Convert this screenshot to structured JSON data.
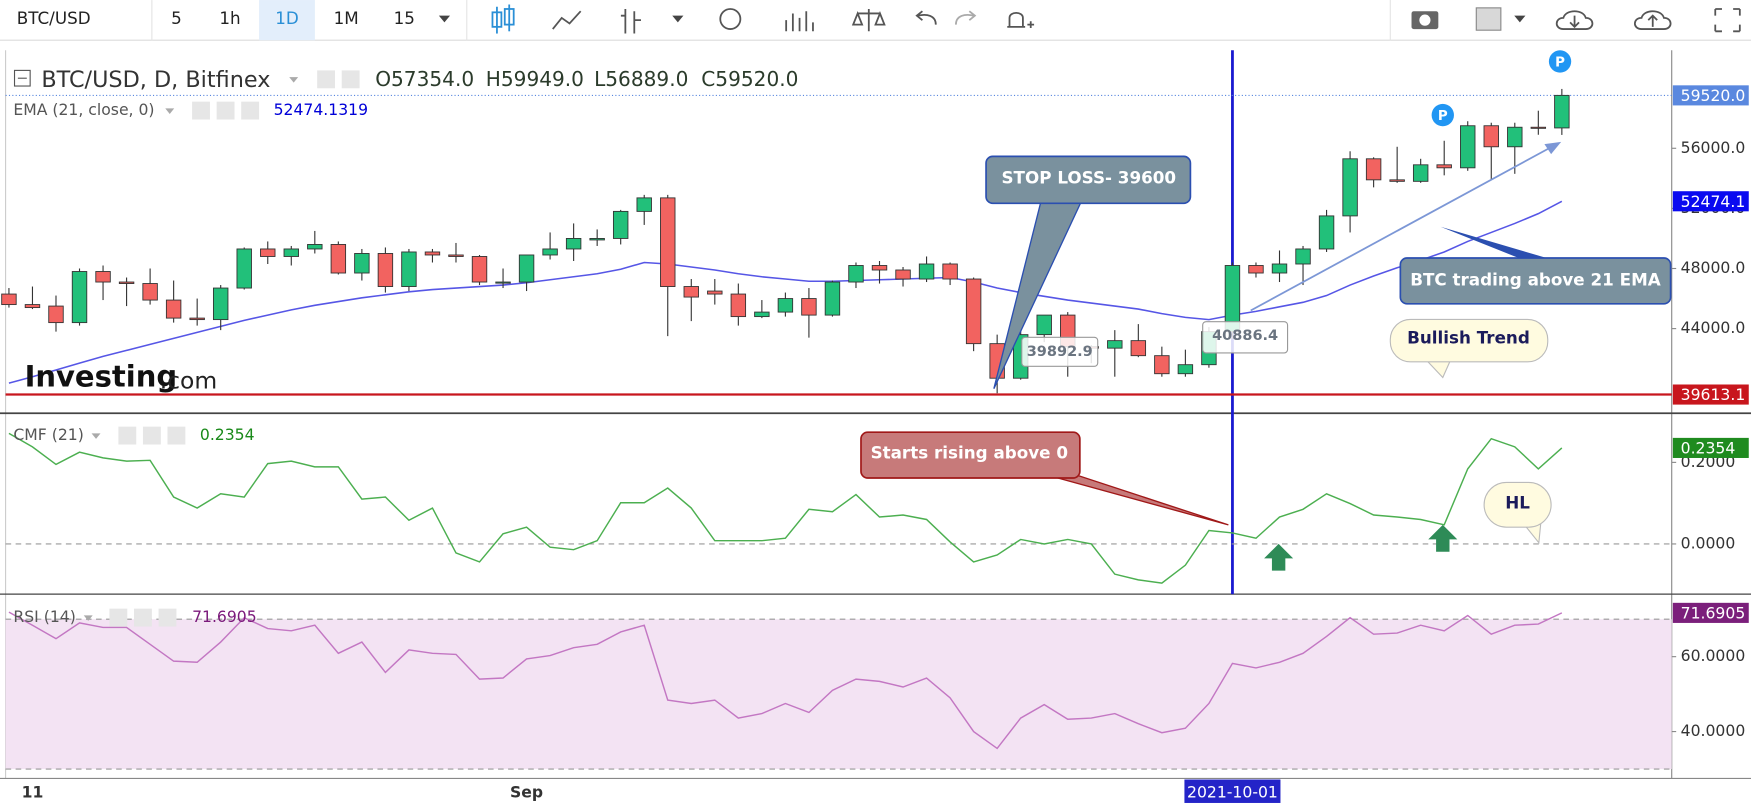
{
  "toolbar": {
    "symbol": "BTC/USD",
    "intervals": [
      "5",
      "1h",
      "1D",
      "1M",
      "15"
    ],
    "active": 2
  },
  "chart_data": [
    {
      "type": "candlestick",
      "title": "BTC/USD, D, Bitfinex",
      "ohlc_legend": [
        {
          "value": 57354,
          "label": "O57354.0"
        },
        {
          "value": 59949,
          "label": "H59949.0"
        },
        {
          "value": 56889,
          "label": "L56889.0"
        },
        {
          "value": 59520,
          "label": "C59520.0"
        }
      ],
      "categories": [
        null,
        "11",
        null,
        null,
        null,
        null,
        null,
        null,
        null,
        null,
        null,
        null,
        null,
        null,
        null,
        null,
        null,
        null,
        null,
        null,
        null,
        null,
        "Sep",
        null,
        null,
        null,
        null,
        null,
        null,
        null,
        null,
        null,
        null,
        null,
        null,
        null,
        null,
        null,
        null,
        null,
        null,
        null,
        null,
        null,
        null,
        null,
        null,
        null,
        null,
        null,
        null,
        null,
        "2021-10-01",
        null,
        null,
        null,
        null,
        null,
        null,
        null,
        null,
        null,
        null,
        null,
        null,
        null,
        null
      ],
      "crosshair_category": "2021-10-01",
      "open": [
        46300,
        45600,
        45500,
        44400,
        47800,
        47100,
        47000,
        45900,
        44700,
        44600,
        46700,
        49300,
        48800,
        49300,
        49600,
        47700,
        49000,
        46800,
        49100,
        48900,
        48800,
        47100,
        47100,
        48900,
        49300,
        49900,
        50000,
        51800,
        52700,
        46800,
        46500,
        46300,
        44800,
        45100,
        46000,
        44900,
        47100,
        48200,
        47900,
        47300,
        48300,
        47300,
        43000,
        40700,
        43600,
        44900,
        42800,
        42700,
        43200,
        42200,
        41000,
        41600,
        43800,
        48200,
        47700,
        48300,
        49300,
        51500,
        55300,
        53900,
        53800,
        54900,
        54700,
        57500,
        56100,
        57400,
        57354
      ],
      "high": [
        46700,
        46800,
        46200,
        48000,
        48200,
        47400,
        48000,
        47200,
        46000,
        46900,
        49400,
        49800,
        49500,
        50500,
        49800,
        49300,
        49400,
        49300,
        49300,
        49700,
        48900,
        48000,
        48900,
        50400,
        51000,
        50600,
        51900,
        52900,
        52900,
        47300,
        47300,
        47000,
        45900,
        46400,
        46700,
        47200,
        48400,
        48500,
        48100,
        48800,
        48400,
        47400,
        43600,
        44000,
        44900,
        45100,
        42900,
        43900,
        44300,
        42800,
        42600,
        44100,
        48400,
        48400,
        49200,
        49500,
        51900,
        55800,
        55400,
        56100,
        55300,
        56500,
        57800,
        57700,
        57700,
        58500,
        59949
      ],
      "low": [
        45400,
        45300,
        43800,
        44200,
        45900,
        45500,
        45600,
        44400,
        44200,
        43900,
        46600,
        48300,
        48200,
        49000,
        47600,
        47200,
        46400,
        46500,
        48400,
        48400,
        46900,
        46700,
        46500,
        48600,
        48500,
        49500,
        49600,
        50900,
        43500,
        44500,
        45600,
        44200,
        44700,
        44800,
        43400,
        44800,
        46700,
        47000,
        46800,
        47100,
        46900,
        42500,
        39700,
        40600,
        43100,
        40800,
        41700,
        40800,
        42100,
        40800,
        40800,
        41400,
        43300,
        47400,
        47100,
        46900,
        49100,
        50400,
        53400,
        53700,
        53700,
        54200,
        54500,
        53900,
        54300,
        56900,
        56889
      ],
      "close": [
        45600,
        45400,
        44400,
        47800,
        47100,
        47000,
        45900,
        44700,
        44600,
        46700,
        49300,
        48800,
        49300,
        49600,
        47700,
        49000,
        46800,
        49100,
        48900,
        48800,
        47100,
        47100,
        48900,
        49300,
        50000,
        50000,
        51800,
        52700,
        46800,
        46100,
        46300,
        44800,
        45100,
        46000,
        44900,
        47100,
        48200,
        47900,
        47300,
        48300,
        47300,
        43000,
        40700,
        43600,
        44900,
        42800,
        42700,
        43200,
        42200,
        41000,
        41600,
        43800,
        48200,
        47700,
        48300,
        49300,
        51500,
        55300,
        53900,
        53800,
        54900,
        54700,
        57500,
        56100,
        57400,
        57354,
        59520
      ],
      "up_color": "#22c07a",
      "down_color": "#f26360",
      "ylim": [
        38370,
        62520
      ],
      "yticks": [
        {
          "value": 44000,
          "label": "44000.0"
        },
        {
          "value": 48000,
          "label": "48000.0"
        },
        {
          "value": 52000,
          "label": "52000.0"
        },
        {
          "value": 56000,
          "label": "56000.0"
        }
      ],
      "grid": false,
      "series": [
        {
          "name": "EMA (21, close, 0)",
          "color": "#5656e6",
          "values": [
            40370,
            40800,
            41250,
            41700,
            42150,
            42550,
            42950,
            43350,
            43750,
            44150,
            44550,
            44900,
            45250,
            45550,
            45800,
            46050,
            46250,
            46450,
            46600,
            46700,
            46800,
            46900,
            47050,
            47250,
            47450,
            47650,
            47950,
            48400,
            48300,
            48100,
            47900,
            47650,
            47450,
            47300,
            47150,
            47150,
            47200,
            47250,
            47300,
            47350,
            47400,
            47100,
            46700,
            46400,
            46150,
            45900,
            45700,
            45500,
            45300,
            45000,
            44750,
            44600,
            44900,
            45150,
            45450,
            45750,
            46200,
            46900,
            47500,
            48050,
            48550,
            49100,
            49800,
            50400,
            51000,
            51650,
            52474.1319
          ]
        }
      ],
      "price_flags": [
        {
          "value": 59520,
          "label": "59520.0",
          "color": "#5a88df",
          "line": "dotted"
        },
        {
          "value": 52474.1,
          "color": "#0a0af0"
        },
        {
          "value": 39613.1,
          "color": "#c8161d",
          "line": "solid"
        }
      ],
      "price_notes": [
        39892.9,
        40886.4
      ],
      "annotations": [
        "STOP LOSS- 39600",
        "BTC trading above 21 EMA",
        "Bullish Trend"
      ],
      "markers": [
        "P",
        "P"
      ],
      "watermark": [
        "Investing",
        ".com"
      ]
    },
    {
      "type": "line",
      "title": "CMF (21)",
      "color": "#4caf50",
      "flag_color": "#1f8b1f",
      "values": [
        0.271,
        0.238,
        0.195,
        0.225,
        0.211,
        0.203,
        0.205,
        0.115,
        0.088,
        0.123,
        0.115,
        0.197,
        0.203,
        0.189,
        0.189,
        0.11,
        0.115,
        0.058,
        0.088,
        -0.022,
        -0.044,
        0.025,
        0.041,
        -0.008,
        -0.014,
        0.008,
        0.101,
        0.101,
        0.137,
        0.088,
        0.008,
        0.008,
        0.008,
        0.014,
        0.085,
        0.079,
        0.121,
        0.066,
        0.071,
        0.06,
        0.005,
        -0.044,
        -0.027,
        0.011,
        0,
        0.011,
        0,
        -0.074,
        -0.088,
        -0.096,
        -0.052,
        0.033,
        0.027,
        0.014,
        0.066,
        0.085,
        0.123,
        0.099,
        0.071,
        0.066,
        0.06,
        0.047,
        0.184,
        0.258,
        0.238,
        0.184,
        0.2354
      ],
      "ylim": [
        -0.123,
        0.315
      ],
      "yticks": [
        {
          "value": 0,
          "label": "0.0000"
        },
        {
          "value": 0.2,
          "label": "0.2000"
        }
      ],
      "reference_lines": [
        0
      ],
      "annotations": [
        "Starts rising above 0",
        "HL"
      ]
    },
    {
      "type": "line",
      "title": "RSI (14)",
      "color": "#c377c3",
      "flag_color": "#7b1f7b",
      "values": [
        71.9,
        68.4,
        64.8,
        69,
        67.8,
        67.8,
        63.3,
        58.8,
        58.5,
        63.9,
        70.4,
        67.5,
        66.9,
        68.4,
        60.9,
        63.9,
        55.8,
        61.8,
        60.9,
        60.6,
        54,
        54.3,
        59.4,
        60.3,
        62.4,
        63.3,
        66.6,
        68.4,
        48.4,
        47.5,
        48.4,
        43.6,
        44.8,
        47.5,
        45.1,
        51,
        54,
        53.4,
        51.9,
        54.3,
        49,
        40,
        35.5,
        43.6,
        47.2,
        43.3,
        43.6,
        44.8,
        42.1,
        39.7,
        40.9,
        47.5,
        58.2,
        57,
        58.5,
        60.9,
        65.4,
        70.4,
        66,
        66.3,
        68.4,
        66.9,
        71,
        66,
        68.4,
        68.7,
        71.6905
      ],
      "ylim": [
        27.5,
        76.1
      ],
      "yticks": [
        {
          "value": 40,
          "label": "40.0000"
        },
        {
          "value": 60,
          "label": "60.0000"
        }
      ],
      "band": [
        30,
        70
      ],
      "band_color": "#f3e3f3",
      "reference_lines": [
        30,
        70
      ]
    }
  ]
}
